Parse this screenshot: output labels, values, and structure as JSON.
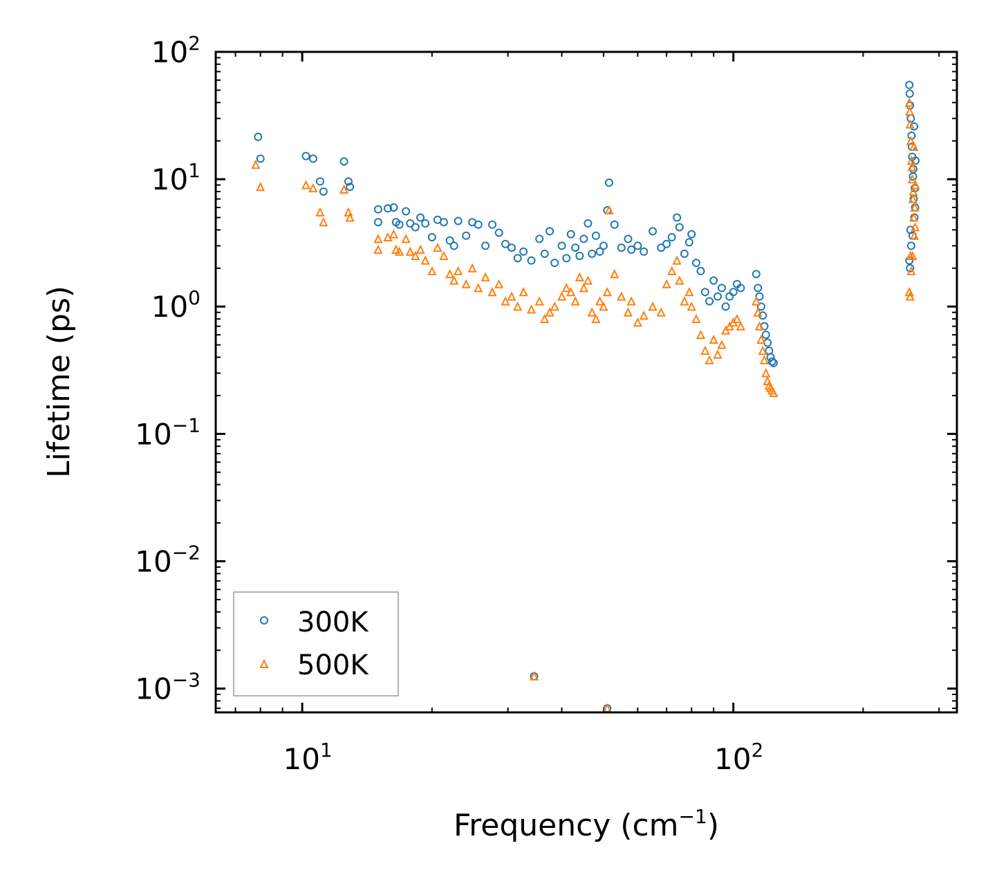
{
  "chart_data": {
    "type": "scatter",
    "xscale": "log",
    "yscale": "log",
    "xlim": [
      6.3,
      330
    ],
    "ylim": [
      0.00065,
      100
    ],
    "xlabel": {
      "text": "Frequency (cm",
      "sup": "−1",
      "suffix": ")"
    },
    "ylabel": "Lifetime (ps)",
    "x_ticks": [
      {
        "base": "10",
        "exp": "1",
        "value": 10
      },
      {
        "base": "10",
        "exp": "2",
        "value": 100
      }
    ],
    "y_ticks": [
      {
        "base": "10",
        "exp": "2",
        "value": 100
      },
      {
        "base": "10",
        "exp": "1",
        "value": 10
      },
      {
        "base": "10",
        "exp": "0",
        "value": 1
      },
      {
        "base": "10",
        "exp": "−1",
        "value": 0.1
      },
      {
        "base": "10",
        "exp": "−2",
        "value": 0.01
      },
      {
        "base": "10",
        "exp": "−3",
        "value": 0.001
      }
    ],
    "legend_position": "lower-left",
    "series": [
      {
        "name": "300K",
        "marker": "circle",
        "color": "#1f77b4",
        "points": [
          [
            7.9,
            21.5
          ],
          [
            8.0,
            14.5
          ],
          [
            10.2,
            15.2
          ],
          [
            10.6,
            14.5
          ],
          [
            11.0,
            9.6
          ],
          [
            11.2,
            8.0
          ],
          [
            12.5,
            13.8
          ],
          [
            12.8,
            9.6
          ],
          [
            12.9,
            8.7
          ],
          [
            15.0,
            5.8
          ],
          [
            15.0,
            4.6
          ],
          [
            15.8,
            5.9
          ],
          [
            16.3,
            6.0
          ],
          [
            16.5,
            4.6
          ],
          [
            16.8,
            4.4
          ],
          [
            17.4,
            5.6
          ],
          [
            17.8,
            4.5
          ],
          [
            18.3,
            4.2
          ],
          [
            18.8,
            5.0
          ],
          [
            19.3,
            4.5
          ],
          [
            20.0,
            3.5
          ],
          [
            20.6,
            4.8
          ],
          [
            21.3,
            4.6
          ],
          [
            22.0,
            3.3
          ],
          [
            22.5,
            3.0
          ],
          [
            23.0,
            4.7
          ],
          [
            24.0,
            3.6
          ],
          [
            24.8,
            4.6
          ],
          [
            25.6,
            4.4
          ],
          [
            26.6,
            3.0
          ],
          [
            27.6,
            4.4
          ],
          [
            28.6,
            3.8
          ],
          [
            29.6,
            3.1
          ],
          [
            30.6,
            2.9
          ],
          [
            31.6,
            2.4
          ],
          [
            32.6,
            2.7
          ],
          [
            34.0,
            2.3
          ],
          [
            35.5,
            3.4
          ],
          [
            36.5,
            2.6
          ],
          [
            37.5,
            3.9
          ],
          [
            38.5,
            2.2
          ],
          [
            40.0,
            3.0
          ],
          [
            41.0,
            2.4
          ],
          [
            42.0,
            3.7
          ],
          [
            43.0,
            2.9
          ],
          [
            44.0,
            2.5
          ],
          [
            45.0,
            3.4
          ],
          [
            46.0,
            4.5
          ],
          [
            47.0,
            2.6
          ],
          [
            48.0,
            3.6
          ],
          [
            49.0,
            2.7
          ],
          [
            50.0,
            3.0
          ],
          [
            51.0,
            5.7
          ],
          [
            51.5,
            9.4
          ],
          [
            53.0,
            4.4
          ],
          [
            55.0,
            2.9
          ],
          [
            57.0,
            3.4
          ],
          [
            58.0,
            2.8
          ],
          [
            60.0,
            3.0
          ],
          [
            62.0,
            2.7
          ],
          [
            65.0,
            3.9
          ],
          [
            68.0,
            2.9
          ],
          [
            70.0,
            3.1
          ],
          [
            72.0,
            3.5
          ],
          [
            74.0,
            5.0
          ],
          [
            75.0,
            4.2
          ],
          [
            77.0,
            2.6
          ],
          [
            79.0,
            3.2
          ],
          [
            80.0,
            3.7
          ],
          [
            82.0,
            2.2
          ],
          [
            84.0,
            1.9
          ],
          [
            86.0,
            1.3
          ],
          [
            88.0,
            1.1
          ],
          [
            90.0,
            1.6
          ],
          [
            92.0,
            1.2
          ],
          [
            94.0,
            1.4
          ],
          [
            96.0,
            1.0
          ],
          [
            98.0,
            1.2
          ],
          [
            100.0,
            1.3
          ],
          [
            102.0,
            1.5
          ],
          [
            104.0,
            1.4
          ],
          [
            113.0,
            1.8
          ],
          [
            114.0,
            1.4
          ],
          [
            115.0,
            1.2
          ],
          [
            116.0,
            1.0
          ],
          [
            117.0,
            0.85
          ],
          [
            118.0,
            0.7
          ],
          [
            119.0,
            0.6
          ],
          [
            120.0,
            0.52
          ],
          [
            121.0,
            0.45
          ],
          [
            122.0,
            0.4
          ],
          [
            123.0,
            0.37
          ],
          [
            124.0,
            0.36
          ],
          [
            34.5,
            0.00125
          ],
          [
            51.0,
            0.0007
          ],
          [
            256.0,
            55.0
          ],
          [
            256.5,
            47.0
          ],
          [
            257.0,
            38.0
          ],
          [
            258.0,
            30.0
          ],
          [
            259.0,
            22.0
          ],
          [
            260.0,
            15.0
          ],
          [
            261.0,
            10.5
          ],
          [
            262.0,
            7.0
          ],
          [
            263.0,
            5.0
          ],
          [
            257.5,
            4.0
          ],
          [
            258.5,
            3.0
          ],
          [
            256.0,
            2.3
          ],
          [
            257.0,
            2.0
          ],
          [
            261.5,
            12.0
          ],
          [
            263.5,
            8.5
          ],
          [
            264.0,
            6.0
          ],
          [
            259.5,
            18.0
          ],
          [
            262.5,
            26.0
          ],
          [
            260.5,
            3.6
          ],
          [
            264.5,
            14.0
          ]
        ]
      },
      {
        "name": "500K",
        "marker": "triangle",
        "color": "#ff7f0e",
        "points": [
          [
            7.8,
            13.0
          ],
          [
            8.0,
            8.7
          ],
          [
            10.2,
            9.0
          ],
          [
            10.6,
            8.5
          ],
          [
            11.0,
            5.5
          ],
          [
            11.2,
            4.6
          ],
          [
            12.5,
            8.3
          ],
          [
            12.8,
            5.5
          ],
          [
            12.9,
            5.0
          ],
          [
            15.0,
            3.4
          ],
          [
            15.0,
            2.8
          ],
          [
            15.8,
            3.5
          ],
          [
            16.3,
            3.7
          ],
          [
            16.5,
            2.8
          ],
          [
            16.8,
            2.7
          ],
          [
            17.4,
            3.4
          ],
          [
            17.8,
            2.7
          ],
          [
            18.3,
            2.5
          ],
          [
            18.8,
            2.8
          ],
          [
            19.3,
            2.3
          ],
          [
            20.0,
            1.9
          ],
          [
            20.6,
            2.9
          ],
          [
            21.3,
            2.5
          ],
          [
            22.0,
            1.8
          ],
          [
            22.5,
            1.6
          ],
          [
            23.0,
            1.9
          ],
          [
            24.0,
            1.5
          ],
          [
            24.8,
            2.0
          ],
          [
            25.6,
            1.4
          ],
          [
            26.6,
            1.7
          ],
          [
            27.6,
            1.3
          ],
          [
            28.6,
            1.5
          ],
          [
            29.6,
            1.1
          ],
          [
            30.6,
            1.2
          ],
          [
            31.6,
            1.0
          ],
          [
            32.6,
            1.3
          ],
          [
            34.0,
            0.95
          ],
          [
            35.5,
            1.1
          ],
          [
            36.5,
            0.8
          ],
          [
            37.5,
            0.9
          ],
          [
            38.5,
            1.0
          ],
          [
            40.0,
            1.2
          ],
          [
            41.0,
            1.4
          ],
          [
            42.0,
            1.3
          ],
          [
            43.0,
            1.1
          ],
          [
            44.0,
            1.7
          ],
          [
            45.0,
            1.4
          ],
          [
            46.0,
            1.6
          ],
          [
            47.0,
            0.9
          ],
          [
            48.0,
            0.8
          ],
          [
            49.0,
            1.1
          ],
          [
            50.0,
            1.0
          ],
          [
            51.0,
            1.3
          ],
          [
            51.5,
            5.7
          ],
          [
            53.0,
            1.8
          ],
          [
            55.0,
            1.2
          ],
          [
            57.0,
            0.9
          ],
          [
            58.0,
            1.1
          ],
          [
            60.0,
            0.75
          ],
          [
            62.0,
            0.85
          ],
          [
            65.0,
            1.0
          ],
          [
            68.0,
            0.9
          ],
          [
            70.0,
            1.5
          ],
          [
            72.0,
            1.9
          ],
          [
            74.0,
            2.3
          ],
          [
            75.0,
            1.6
          ],
          [
            77.0,
            1.1
          ],
          [
            79.0,
            1.3
          ],
          [
            80.0,
            1.0
          ],
          [
            82.0,
            0.8
          ],
          [
            84.0,
            0.6
          ],
          [
            86.0,
            0.45
          ],
          [
            88.0,
            0.38
          ],
          [
            90.0,
            0.55
          ],
          [
            92.0,
            0.42
          ],
          [
            94.0,
            0.5
          ],
          [
            96.0,
            0.65
          ],
          [
            98.0,
            0.7
          ],
          [
            100.0,
            0.75
          ],
          [
            102.0,
            0.8
          ],
          [
            104.0,
            0.7
          ],
          [
            113.0,
            1.1
          ],
          [
            114.0,
            0.9
          ],
          [
            115.0,
            0.7
          ],
          [
            116.0,
            0.55
          ],
          [
            117.0,
            0.45
          ],
          [
            118.0,
            0.38
          ],
          [
            119.0,
            0.3
          ],
          [
            120.0,
            0.26
          ],
          [
            121.0,
            0.24
          ],
          [
            122.0,
            0.23
          ],
          [
            123.0,
            0.22
          ],
          [
            124.0,
            0.21
          ],
          [
            34.5,
            0.00125
          ],
          [
            51.0,
            0.0007
          ],
          [
            256.0,
            40.0
          ],
          [
            256.5,
            34.0
          ],
          [
            257.0,
            27.0
          ],
          [
            258.0,
            20.0
          ],
          [
            259.0,
            14.0
          ],
          [
            260.0,
            10.0
          ],
          [
            261.0,
            7.0
          ],
          [
            262.0,
            5.0
          ],
          [
            263.0,
            3.6
          ],
          [
            257.5,
            2.5
          ],
          [
            258.5,
            1.9
          ],
          [
            256.0,
            1.3
          ],
          [
            257.0,
            1.2
          ],
          [
            261.5,
            8.0
          ],
          [
            263.5,
            6.0
          ],
          [
            264.0,
            4.2
          ],
          [
            259.5,
            12.5
          ],
          [
            262.5,
            18.0
          ],
          [
            260.5,
            2.5
          ],
          [
            264.5,
            9.0
          ]
        ]
      }
    ]
  }
}
